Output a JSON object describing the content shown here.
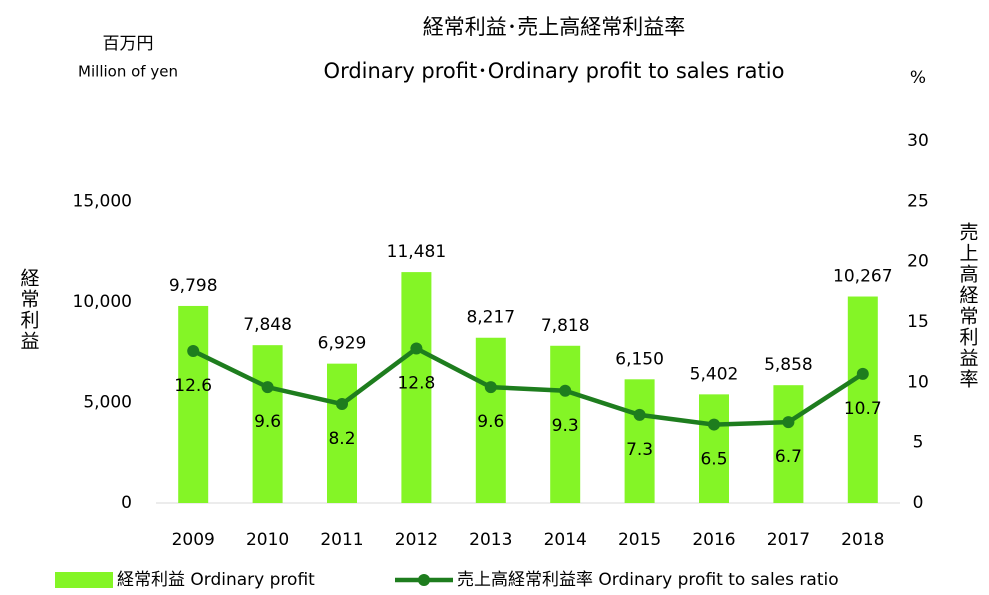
{
  "chart_data": {
    "type": "bar_line",
    "title": "経常利益･売上高経常利益率",
    "subtitle": "Ordinary profit･Ordinary profit to sales ratio",
    "y_unit": "百万円",
    "y_unit_en": "Million of yen",
    "y2_unit": "%",
    "ylabel": "経常利益",
    "y2label": "売上高経常利益率",
    "categories": [
      "2009",
      "2010",
      "2011",
      "2012",
      "2013",
      "2014",
      "2015",
      "2016",
      "2017",
      "2018"
    ],
    "series": [
      {
        "name": "経常利益 Ordinary profit",
        "type": "bar",
        "color": "#84f526",
        "values": [
          9798,
          7848,
          6929,
          11481,
          8217,
          7818,
          6150,
          5402,
          5858,
          10267
        ],
        "value_labels": [
          "9,798",
          "7,848",
          "6,929",
          "11,481",
          "8,217",
          "7,818",
          "6,150",
          "5,402",
          "5,858",
          "10,267"
        ]
      },
      {
        "name": "売上高経常利益率 Ordinary profit to sales ratio",
        "type": "line",
        "axis": "y2",
        "color": "#1e7d1e",
        "values": [
          12.6,
          9.6,
          8.2,
          12.8,
          9.6,
          9.3,
          7.3,
          6.5,
          6.7,
          10.7
        ]
      }
    ],
    "ylim": [
      0,
      18000
    ],
    "yticks": [
      0,
      {
        "value": 5000,
        "label": "5,000"
      },
      {
        "value": 10000,
        "label": "10,000"
      },
      {
        "value": 15000,
        "label": "15,000"
      }
    ],
    "y2lim": [
      0,
      30
    ],
    "y2ticks": [
      0,
      5,
      10,
      15,
      20,
      25,
      30
    ],
    "legend": "bottom"
  }
}
